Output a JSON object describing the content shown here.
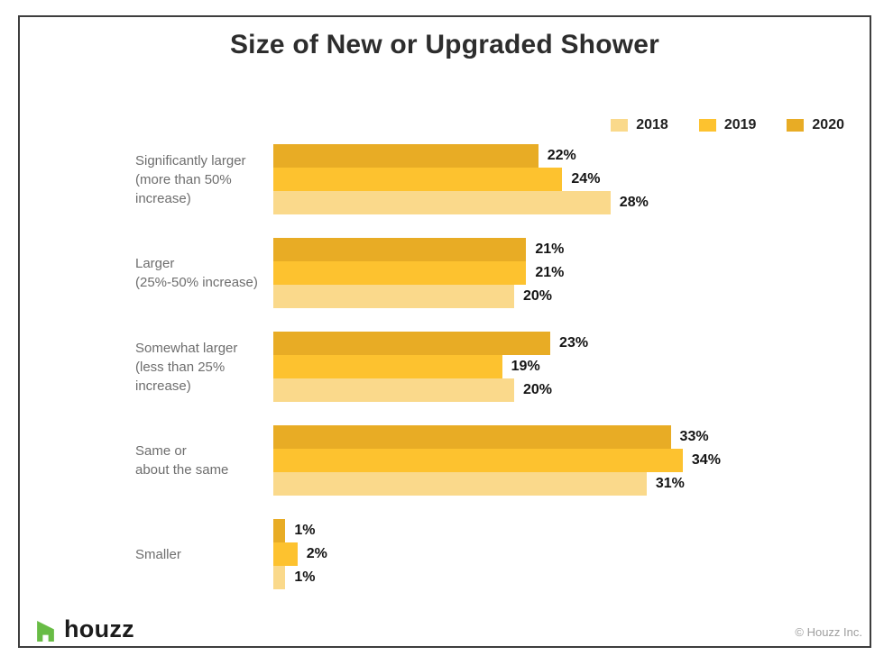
{
  "page": {
    "footer": {
      "brand": "houzz",
      "copyright": "© Houzz Inc."
    }
  },
  "colors": {
    "border": "#3E3E3E",
    "houzz_green": "#68BC45",
    "title_text": "#2D2D2D",
    "category_text": "#6E6E6E",
    "value_text": "#141414"
  },
  "chart_data": {
    "type": "bar",
    "orientation": "horizontal",
    "title": "Size of New or Upgraded Shower",
    "value_format": "percent",
    "axis": "none",
    "legend_position": "top-right",
    "bar_order_top_to_bottom": [
      "2020",
      "2019",
      "2018"
    ],
    "categories": [
      {
        "lines": [
          "Significantly larger",
          "(more than 50%",
          "increase)"
        ]
      },
      {
        "lines": [
          "Larger",
          "(25%-50% increase)"
        ]
      },
      {
        "lines": [
          "Somewhat larger",
          "(less than 25%",
          "increase)"
        ]
      },
      {
        "lines": [
          "Same or",
          "about the same"
        ]
      },
      {
        "lines": [
          "Smaller"
        ]
      }
    ],
    "series": [
      {
        "name": "2018",
        "color": "#FAD98B",
        "values": [
          28,
          20,
          20,
          31,
          1
        ]
      },
      {
        "name": "2019",
        "color": "#FDC22F",
        "values": [
          24,
          21,
          19,
          34,
          2
        ]
      },
      {
        "name": "2020",
        "color": "#E8AC25",
        "values": [
          22,
          21,
          23,
          33,
          1
        ]
      }
    ]
  }
}
